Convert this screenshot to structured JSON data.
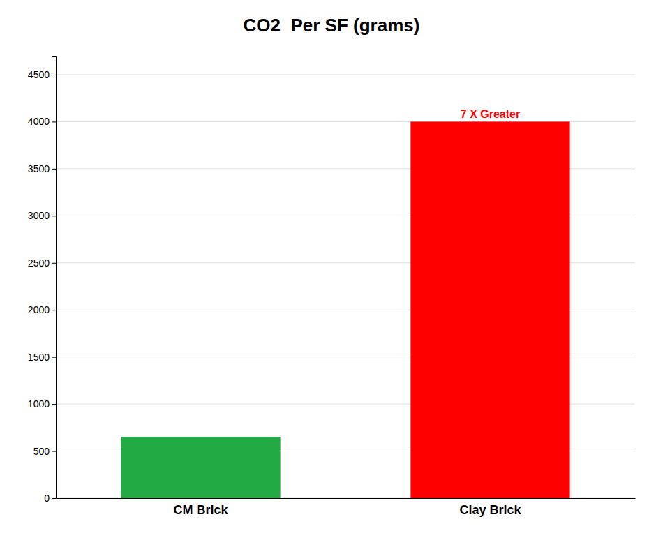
{
  "chart_data": {
    "type": "bar",
    "title": "CO2  Per SF (grams)",
    "categories": [
      "CM Brick",
      "Clay Brick"
    ],
    "values": [
      650,
      4000
    ],
    "colors": [
      "#22aa44",
      "#ff0000"
    ],
    "ylim": [
      0,
      4700
    ],
    "yticks": [
      0,
      500,
      1000,
      1500,
      2000,
      2500,
      3000,
      3500,
      4000,
      4500
    ],
    "grid": true,
    "annotations": [
      {
        "text": "7 X Greater",
        "x": "Clay Brick",
        "y": 4010,
        "color": "#ff0000"
      }
    ]
  }
}
